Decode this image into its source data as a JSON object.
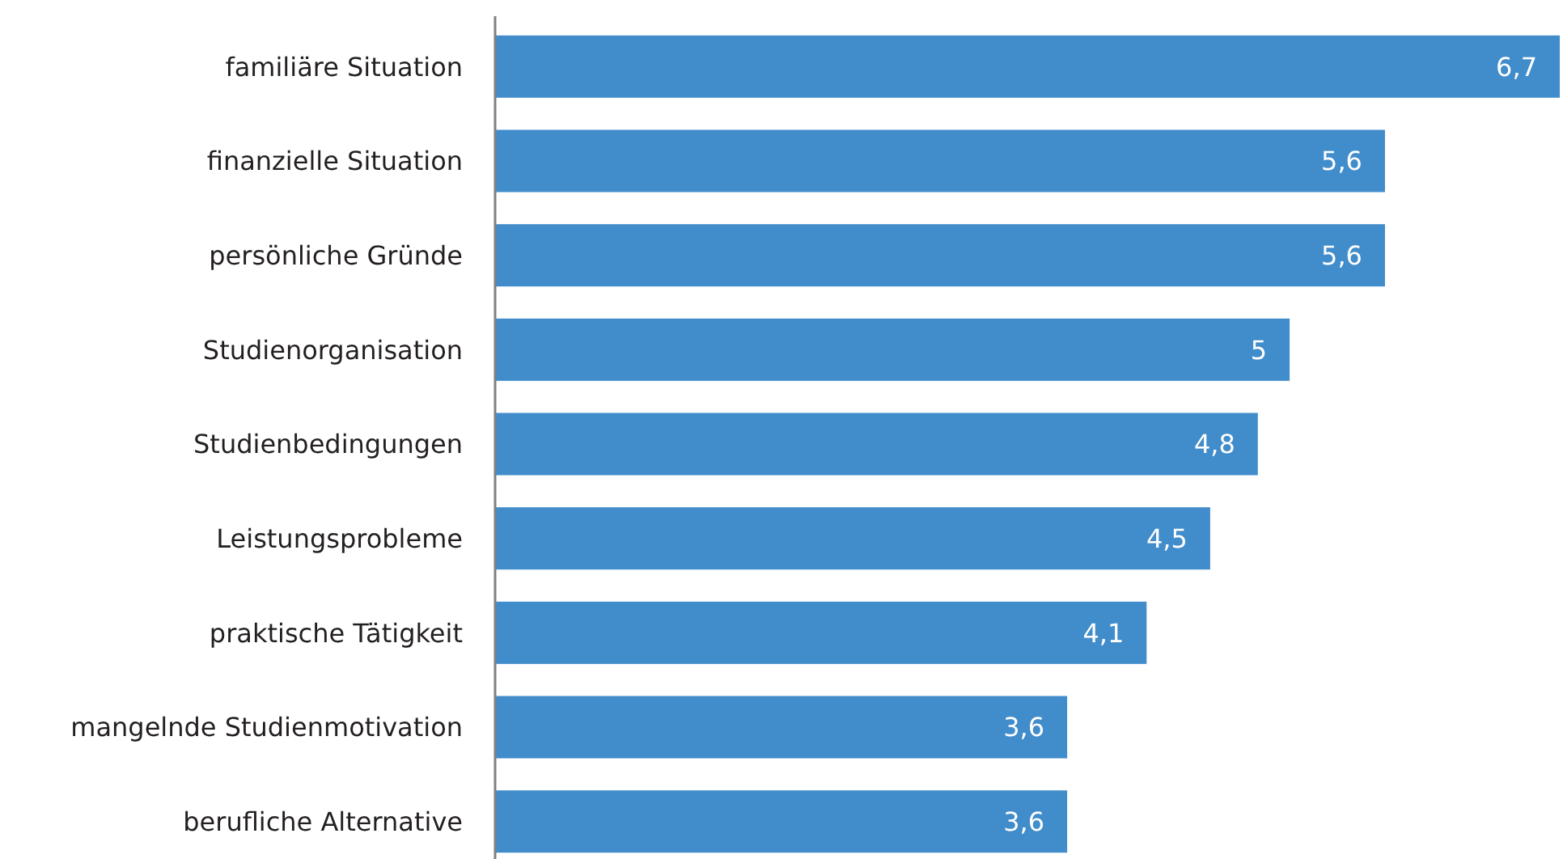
{
  "chart_data": {
    "type": "bar",
    "orientation": "horizontal",
    "color": "#418ccb",
    "categories": [
      "familiäre Situation",
      "finanzielle Situation",
      "persönliche Gründe",
      "Studienorganisation",
      "Studienbedingungen",
      "Leistungsprobleme",
      "praktische Tätigkeit",
      "mangelnde Studienmotivation",
      "berufliche Alternative"
    ],
    "values": [
      6.7,
      5.6,
      5.6,
      5,
      4.8,
      4.5,
      4.1,
      3.6,
      3.6
    ],
    "value_labels": [
      "6,7",
      "5,6",
      "5,6",
      "5",
      "4,8",
      "4,5",
      "4,1",
      "3,6",
      "3,6"
    ]
  }
}
